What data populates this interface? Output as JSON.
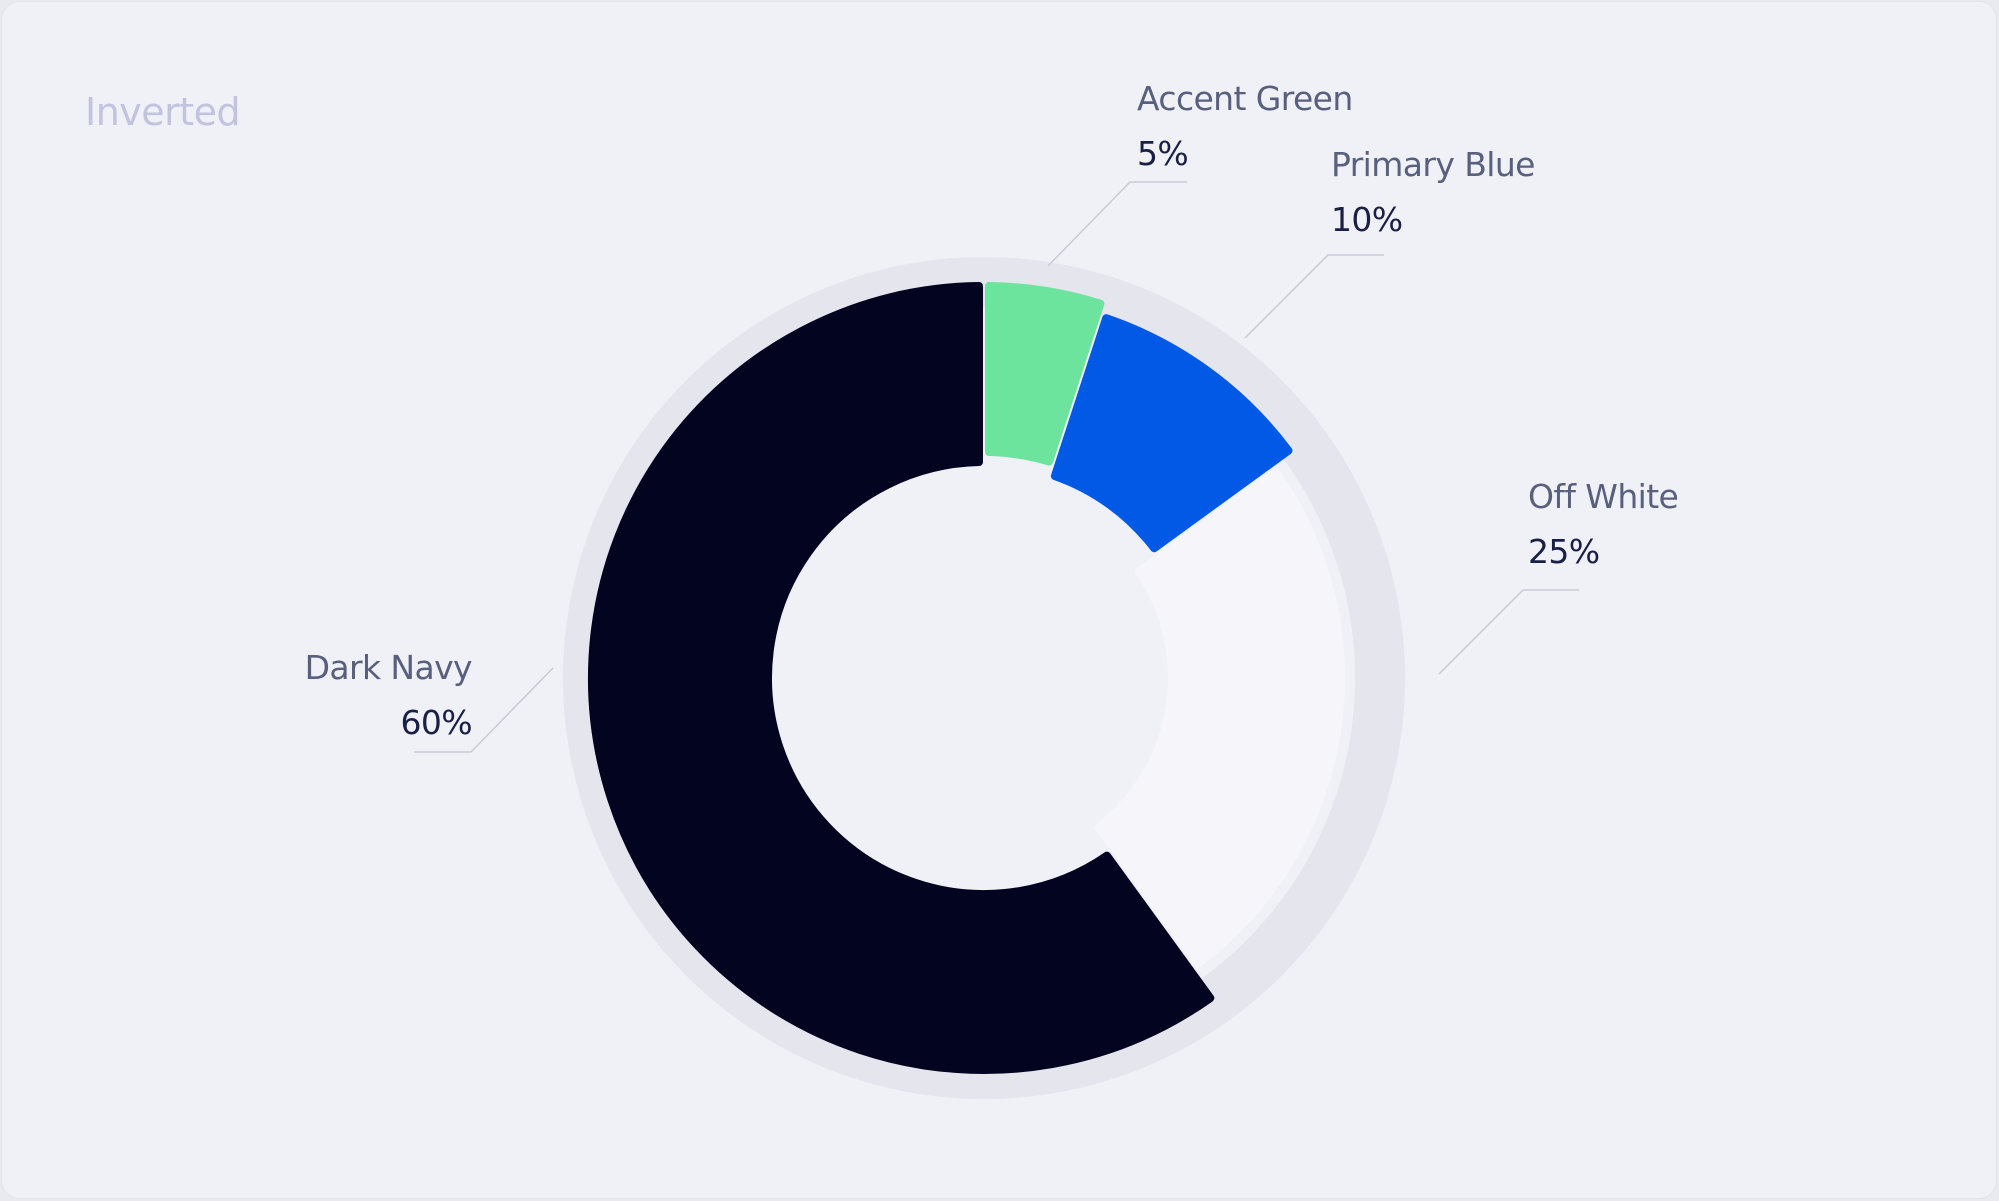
{
  "card": {
    "title": "Inverted"
  },
  "chart_data": {
    "type": "donut",
    "title": "Inverted",
    "unit": "%",
    "slices": [
      {
        "label": "Accent Green",
        "value": 5,
        "value_label": "5%",
        "color": "#6ce49d"
      },
      {
        "label": "Primary Blue",
        "value": 10,
        "value_label": "10%",
        "color": "#0259e6"
      },
      {
        "label": "Off White",
        "value": 25,
        "value_label": "25%",
        "color": "#f5f5fa"
      },
      {
        "label": "Dark Navy",
        "value": 60,
        "value_label": "60%",
        "color": "#03041f"
      }
    ],
    "track_color": "#e5e6ed",
    "legend_placement": "leader-line labels around the donut"
  }
}
